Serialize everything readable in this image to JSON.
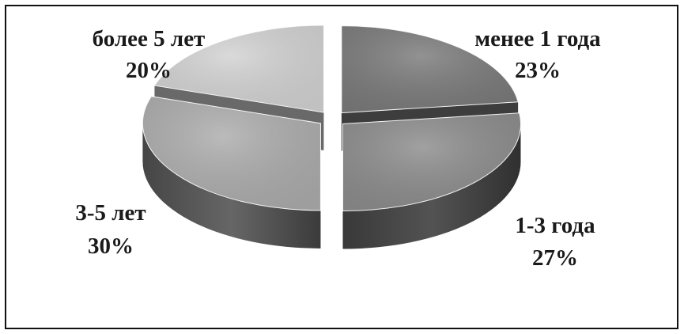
{
  "chart_data": {
    "type": "pie",
    "style": "3d-exploded",
    "grid": false,
    "legend": "none",
    "slices": [
      {
        "name": "менее 1 года",
        "value": 23,
        "label": "23%",
        "color": "#7a7a7a"
      },
      {
        "name": "1-3 года",
        "value": 27,
        "label": "27%",
        "color": "#8c8c8c"
      },
      {
        "name": "3-5 лет",
        "value": 30,
        "label": "30%",
        "color": "#acacac"
      },
      {
        "name": "более 5 лет",
        "value": 20,
        "label": "20%",
        "color": "#d2d2d2"
      }
    ]
  }
}
